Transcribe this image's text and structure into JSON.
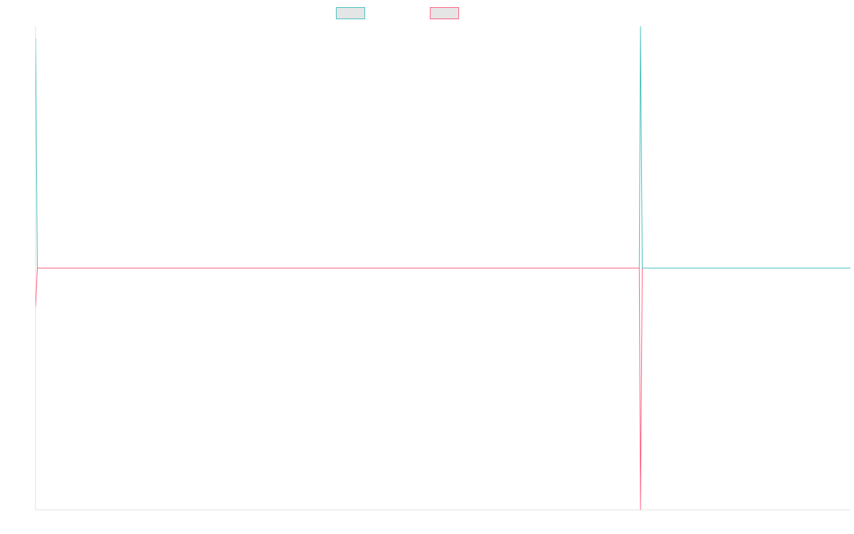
{
  "chart_data": {
    "type": "line",
    "title": "",
    "xlabel": "",
    "ylabel": "",
    "grid": false,
    "legend_position": "top-center",
    "xlim": [
      0,
      1000
    ],
    "ylim": [
      -1,
      1
    ],
    "series": [
      {
        "name": "",
        "color": "#4bc0c0",
        "legend_fill": "#e5e5e5",
        "points": [
          [
            0,
            0.95
          ],
          [
            3,
            0
          ],
          [
            998,
            0
          ],
          [
            1000,
            1
          ],
          [
            1003,
            0
          ],
          [
            1347,
            0
          ]
        ]
      },
      {
        "name": "",
        "color": "#ff6384",
        "legend_fill": "#e5e5e5",
        "points": [
          [
            0,
            -0.16
          ],
          [
            3,
            0
          ],
          [
            998,
            0
          ],
          [
            1000,
            -1
          ],
          [
            1003,
            0
          ]
        ]
      }
    ]
  }
}
